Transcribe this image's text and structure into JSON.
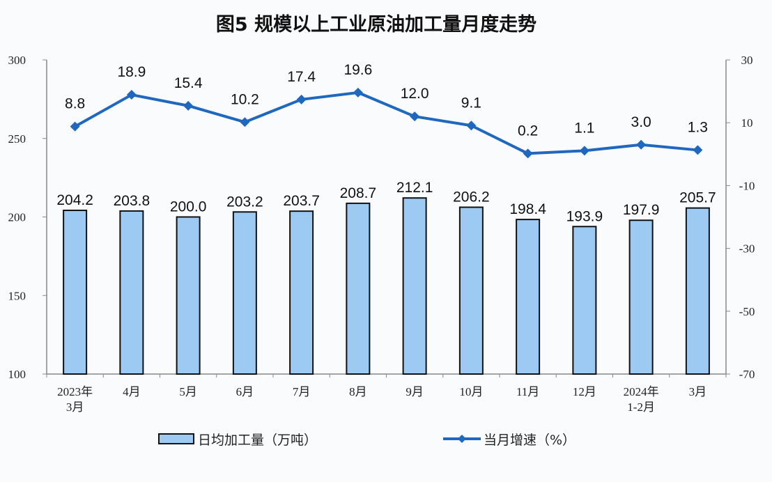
{
  "chart_data": {
    "type": "bar+line",
    "title": "图5  规模以上工业原油加工量月度走势",
    "categories": [
      "2023年\n3月",
      "4月",
      "5月",
      "6月",
      "7月",
      "8月",
      "9月",
      "10月",
      "11月",
      "12月",
      "2024年\n1-2月",
      "3月"
    ],
    "series": [
      {
        "name": "日均加工量（万吨）",
        "type": "bar",
        "axis": "left",
        "color": "#9dcaf2",
        "values": [
          204.2,
          203.8,
          200.0,
          203.2,
          203.7,
          208.7,
          212.1,
          206.2,
          198.4,
          193.9,
          197.9,
          205.7
        ]
      },
      {
        "name": "当月增速（%）",
        "type": "line",
        "axis": "right",
        "color": "#1f68bf",
        "values": [
          8.8,
          18.9,
          15.4,
          10.2,
          17.4,
          19.6,
          12.0,
          9.1,
          0.2,
          1.1,
          3.0,
          1.3
        ]
      }
    ],
    "left_axis": {
      "range": [
        100,
        300
      ],
      "ticks": [
        100,
        150,
        200,
        250,
        300
      ]
    },
    "right_axis": {
      "range": [
        -70,
        30
      ],
      "ticks": [
        -70,
        -50,
        -30,
        -10,
        10,
        30
      ]
    },
    "grid": false,
    "legend": "bottom"
  }
}
